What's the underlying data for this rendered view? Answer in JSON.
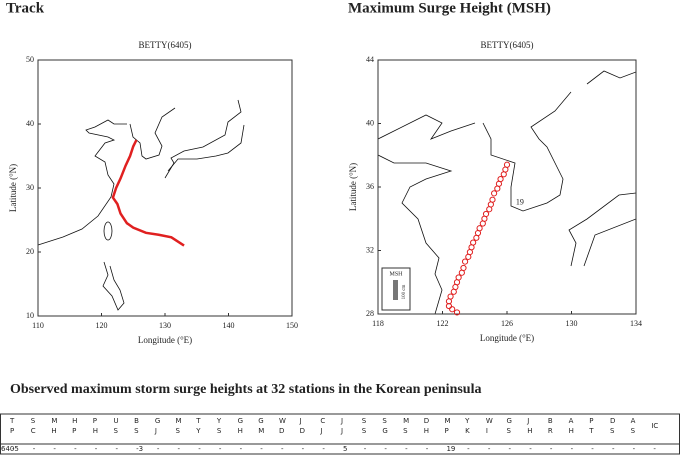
{
  "headings": [
    "Track",
    "Maximum Surge Height (MSH)"
  ],
  "chart_data": [
    {
      "type": "line",
      "title": "BETTY(6405)",
      "xlabel": "Longitude (°E)",
      "ylabel": "Latitude (°N)",
      "xlim": [
        110,
        150
      ],
      "xticks": [
        110,
        120,
        130,
        140,
        150
      ],
      "ylim": [
        10,
        50
      ],
      "yticks": [
        10,
        20,
        30,
        40,
        50
      ],
      "color": "#e02020",
      "x": [
        133,
        131,
        129,
        127,
        125,
        124,
        123,
        122.5,
        121.8,
        122.3,
        123,
        123.8,
        124.5,
        125,
        125.5
      ],
      "y": [
        21,
        22.3,
        22.7,
        23,
        23.8,
        24.5,
        26,
        27.5,
        28.5,
        30,
        31.5,
        33.5,
        35,
        36.5,
        37.5
      ]
    },
    {
      "type": "scatter",
      "title": "BETTY(6405)",
      "xlabel": "Longitude (°E)",
      "ylabel": "Latitude (°N)",
      "xlim": [
        118,
        134
      ],
      "xticks": [
        118,
        122,
        126,
        130,
        134
      ],
      "ylim": [
        28,
        44
      ],
      "yticks": [
        28,
        32,
        36,
        40,
        44
      ],
      "color": "#e02020",
      "annotation": "19",
      "legend_title": "MSH",
      "legend_scale": "100 cm",
      "x": [
        122.9,
        122.6,
        122.4,
        122.4,
        122.5,
        122.7,
        122.8,
        122.9,
        123.0,
        123.2,
        123.3,
        123.4,
        123.6,
        123.7,
        123.8,
        123.9,
        124.1,
        124.2,
        124.3,
        124.5,
        124.6,
        124.7,
        124.9,
        125.0,
        125.1,
        125.2,
        125.4,
        125.5,
        125.6,
        125.8,
        125.9,
        126.0
      ],
      "y": [
        28.1,
        28.3,
        28.5,
        28.8,
        29.1,
        29.4,
        29.7,
        30.0,
        30.3,
        30.6,
        30.9,
        31.3,
        31.6,
        31.9,
        32.2,
        32.5,
        32.8,
        33.1,
        33.4,
        33.7,
        34.0,
        34.3,
        34.6,
        34.9,
        35.2,
        35.6,
        35.9,
        36.2,
        36.5,
        36.8,
        37.1,
        37.4
      ]
    }
  ],
  "table": {
    "title": "Observed maximum storm surge heights at 32 stations in the Korean peninsula",
    "header": [
      [
        "T",
        "P"
      ],
      [
        "S",
        "C"
      ],
      [
        "M",
        "H"
      ],
      [
        "H",
        "P"
      ],
      [
        "P",
        "H"
      ],
      [
        "U",
        "S"
      ],
      [
        "B",
        "S"
      ],
      [
        "G",
        "J"
      ],
      [
        "M",
        "S"
      ],
      [
        "T",
        "Y"
      ],
      [
        "Y",
        "S"
      ],
      [
        "G",
        "H"
      ],
      [
        "G",
        "M"
      ],
      [
        "W",
        "D"
      ],
      [
        "J",
        "D"
      ],
      [
        "C",
        "J"
      ],
      [
        "J",
        "J"
      ],
      [
        "S",
        "S"
      ],
      [
        "S",
        "G"
      ],
      [
        "M",
        "S"
      ],
      [
        "D",
        "H"
      ],
      [
        "M",
        "P"
      ],
      [
        "Y",
        "K"
      ],
      [
        "W",
        "I"
      ],
      [
        "G",
        "S"
      ],
      [
        "J",
        "H"
      ],
      [
        "B",
        "R"
      ],
      [
        "A",
        "H"
      ],
      [
        "P",
        "T"
      ],
      [
        "D",
        "S"
      ],
      [
        "A",
        "S"
      ],
      [
        "IC"
      ]
    ],
    "rows": [
      {
        "label": "6405",
        "cells": [
          "-",
          "-",
          "-",
          "-",
          "-",
          "-",
          -3,
          "-",
          "-",
          "-",
          "-",
          "-",
          "-",
          "-",
          "-",
          "-",
          5,
          "-",
          "-",
          "-",
          "-",
          19,
          "-",
          "-",
          "-",
          "-",
          "-",
          "-",
          "-",
          "-",
          "-",
          "-"
        ]
      }
    ]
  }
}
